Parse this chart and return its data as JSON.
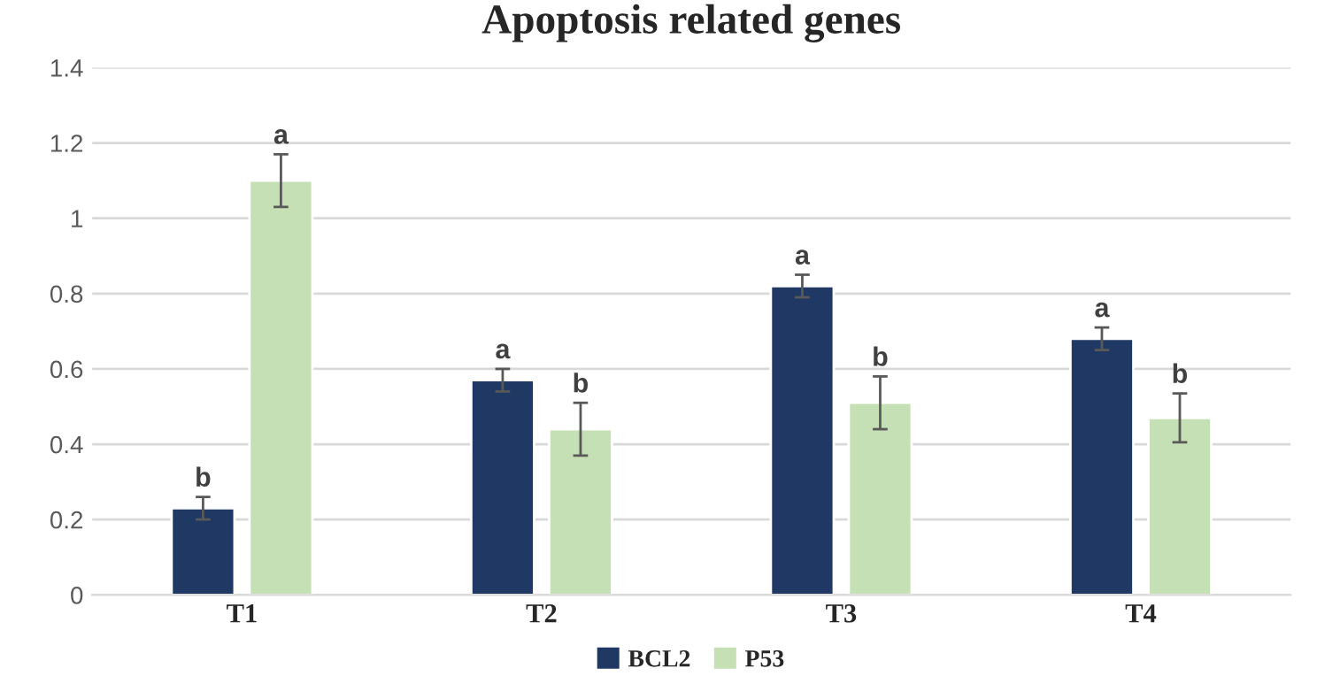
{
  "chart_data": {
    "type": "bar",
    "title": "Apoptosis related genes",
    "categories": [
      "T1",
      "T2",
      "T3",
      "T4"
    ],
    "series": [
      {
        "name": "BCL2",
        "color": "#203864",
        "values": [
          0.23,
          0.57,
          0.82,
          0.68
        ],
        "errors": [
          0.03,
          0.03,
          0.03,
          0.03
        ],
        "value_labels": [
          "b",
          "a",
          "a",
          "a"
        ]
      },
      {
        "name": "P53",
        "color": "#c5e0b4",
        "values": [
          1.1,
          0.44,
          0.51,
          0.47
        ],
        "errors": [
          0.07,
          0.07,
          0.07,
          0.065
        ],
        "value_labels": [
          "a",
          "b",
          "b",
          "b"
        ]
      }
    ],
    "ylim": [
      0,
      1.4
    ],
    "yticks": [
      0,
      0.2,
      0.4,
      0.6,
      0.8,
      1,
      1.2,
      1.4
    ],
    "grid": "y",
    "legend": "bottom"
  }
}
